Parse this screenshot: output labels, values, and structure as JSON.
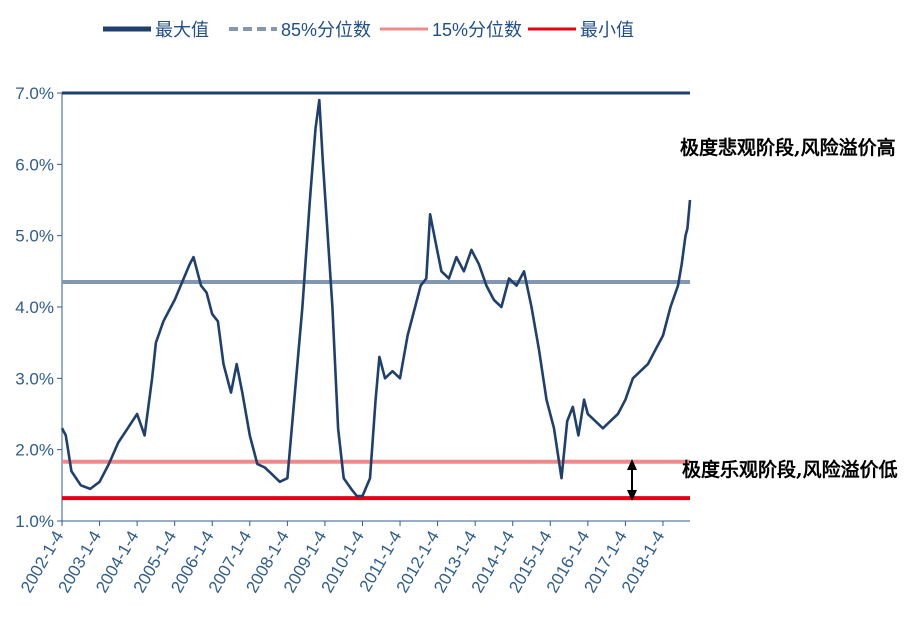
{
  "chart_data": {
    "type": "line",
    "title": "",
    "xlabel": "",
    "ylabel": "",
    "ylim": [
      1.0,
      7.0
    ],
    "yticks": [
      "1.0%",
      "2.0%",
      "3.0%",
      "4.0%",
      "5.0%",
      "6.0%",
      "7.0%"
    ],
    "xticks": [
      "2002-1-4",
      "2003-1-4",
      "2004-1-4",
      "2005-1-4",
      "2006-1-4",
      "2007-1-4",
      "2008-1-4",
      "2009-1-4",
      "2010-1-4",
      "2011-1-4",
      "2012-1-4",
      "2013-1-4",
      "2014-1-4",
      "2015-1-4",
      "2016-1-4",
      "2017-1-4",
      "2018-1-4"
    ],
    "legend": [
      {
        "label": "最大值",
        "color": "#1f3f6e",
        "style": "solid-thick"
      },
      {
        "label": "85%分位数",
        "color": "#8497b0",
        "style": "dashed"
      },
      {
        "label": "15%分位数",
        "color": "#f08a8a",
        "style": "solid"
      },
      {
        "label": "最小值",
        "color": "#e60012",
        "style": "solid"
      }
    ],
    "hlines": [
      {
        "name": "最大值",
        "value": 7.0,
        "color": "#1f3f6e"
      },
      {
        "name": "85%分位数",
        "value": 4.35,
        "color": "#8497b0"
      },
      {
        "name": "15%分位数",
        "value": 1.83,
        "color": "#f08a8a"
      },
      {
        "name": "最小值",
        "value": 1.32,
        "color": "#e60012"
      }
    ],
    "series": [
      {
        "color": "#1f3f6e",
        "x": [
          2002.0,
          2002.1,
          2002.25,
          2002.5,
          2002.75,
          2003.0,
          2003.25,
          2003.5,
          2003.75,
          2004.0,
          2004.2,
          2004.4,
          2004.5,
          2004.7,
          2004.9,
          2005.0,
          2005.2,
          2005.4,
          2005.5,
          2005.7,
          2005.85,
          2006.0,
          2006.15,
          2006.3,
          2006.5,
          2006.65,
          2006.8,
          2007.0,
          2007.2,
          2007.4,
          2007.6,
          2007.8,
          2008.0,
          2008.2,
          2008.4,
          2008.6,
          2008.75,
          2008.85,
          2008.95,
          2009.05,
          2009.2,
          2009.35,
          2009.5,
          2009.7,
          2009.85,
          2010.0,
          2010.2,
          2010.35,
          2010.45,
          2010.6,
          2010.8,
          2011.0,
          2011.2,
          2011.4,
          2011.55,
          2011.7,
          2011.8,
          2011.95,
          2012.1,
          2012.3,
          2012.5,
          2012.7,
          2012.9,
          2013.1,
          2013.3,
          2013.5,
          2013.7,
          2013.9,
          2014.1,
          2014.3,
          2014.5,
          2014.7,
          2014.9,
          2015.1,
          2015.3,
          2015.45,
          2015.6,
          2015.75,
          2015.9,
          2016.0,
          2016.2,
          2016.4,
          2016.6,
          2016.8,
          2017.0,
          2017.2,
          2017.4,
          2017.6,
          2017.8,
          2018.0,
          2018.2,
          2018.4,
          2018.5,
          2018.6,
          2018.65,
          2018.72
        ],
        "y": [
          2.3,
          2.2,
          1.7,
          1.5,
          1.45,
          1.55,
          1.8,
          2.1,
          2.3,
          2.5,
          2.2,
          3.0,
          3.5,
          3.8,
          4.0,
          4.1,
          4.35,
          4.6,
          4.7,
          4.3,
          4.2,
          3.9,
          3.8,
          3.2,
          2.8,
          3.2,
          2.8,
          2.2,
          1.8,
          1.75,
          1.65,
          1.55,
          1.6,
          2.8,
          4.0,
          5.5,
          6.5,
          6.9,
          6.0,
          5.2,
          4.0,
          2.3,
          1.6,
          1.45,
          1.35,
          1.35,
          1.6,
          2.7,
          3.3,
          3.0,
          3.1,
          3.0,
          3.6,
          4.0,
          4.3,
          4.4,
          5.3,
          4.9,
          4.5,
          4.4,
          4.7,
          4.5,
          4.8,
          4.6,
          4.3,
          4.1,
          4.0,
          4.4,
          4.3,
          4.5,
          4.0,
          3.4,
          2.7,
          2.3,
          1.6,
          2.4,
          2.6,
          2.2,
          2.7,
          2.5,
          2.4,
          2.3,
          2.4,
          2.5,
          2.7,
          3.0,
          3.1,
          3.2,
          3.4,
          3.6,
          4.0,
          4.3,
          4.6,
          5.0,
          5.1,
          5.5
        ]
      }
    ],
    "annotations": [
      {
        "text": "极度悲观阶段,风险溢价高",
        "anchor": "upper-right"
      },
      {
        "text": "极度乐观阶段,风险溢价低",
        "anchor": "lower-right"
      }
    ],
    "grid": false,
    "legend_position": "top"
  }
}
